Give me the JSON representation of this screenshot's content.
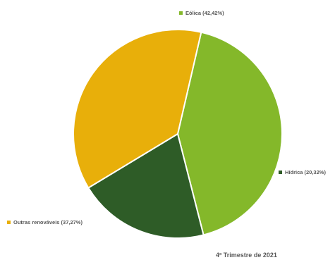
{
  "chart_data": {
    "type": "pie",
    "title": "",
    "subtitle": "4º Trimestre de 2021",
    "slices": [
      {
        "name": "Eólica",
        "value": 42.42,
        "label": "Eólica (42,42%)",
        "color": "#84B82A"
      },
      {
        "name": "Hídrica",
        "value": 20.32,
        "label": "Hídrica (20,32%)",
        "color": "#2E5C27"
      },
      {
        "name": "Outras renováveis",
        "value": 37.27,
        "label": "Outras renováveis (37,27%)",
        "color": "#E8AF0A"
      }
    ],
    "legend": "none",
    "data_labels": "outside"
  }
}
